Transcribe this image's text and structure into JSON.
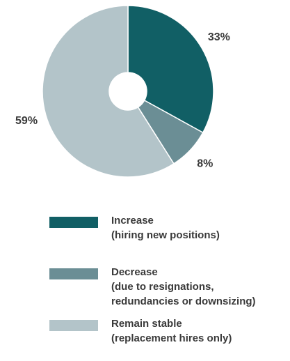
{
  "chart_data": {
    "type": "pie",
    "donut": true,
    "slices": [
      {
        "label_lines": [
          "Increase",
          "(hiring new positions)"
        ],
        "value": 33,
        "display": "33%",
        "color": "#115f65"
      },
      {
        "label_lines": [
          "Decrease",
          "(due to resignations,",
          "redundancies or downsizing)"
        ],
        "value": 8,
        "display": "8%",
        "color": "#6b8e95"
      },
      {
        "label_lines": [
          "Remain stable",
          "(replacement hires only)"
        ],
        "value": 59,
        "display": "59%",
        "color": "#b3c4c9"
      }
    ],
    "start_angle": "12 o'clock",
    "direction": "clockwise",
    "legend_position": "bottom"
  }
}
